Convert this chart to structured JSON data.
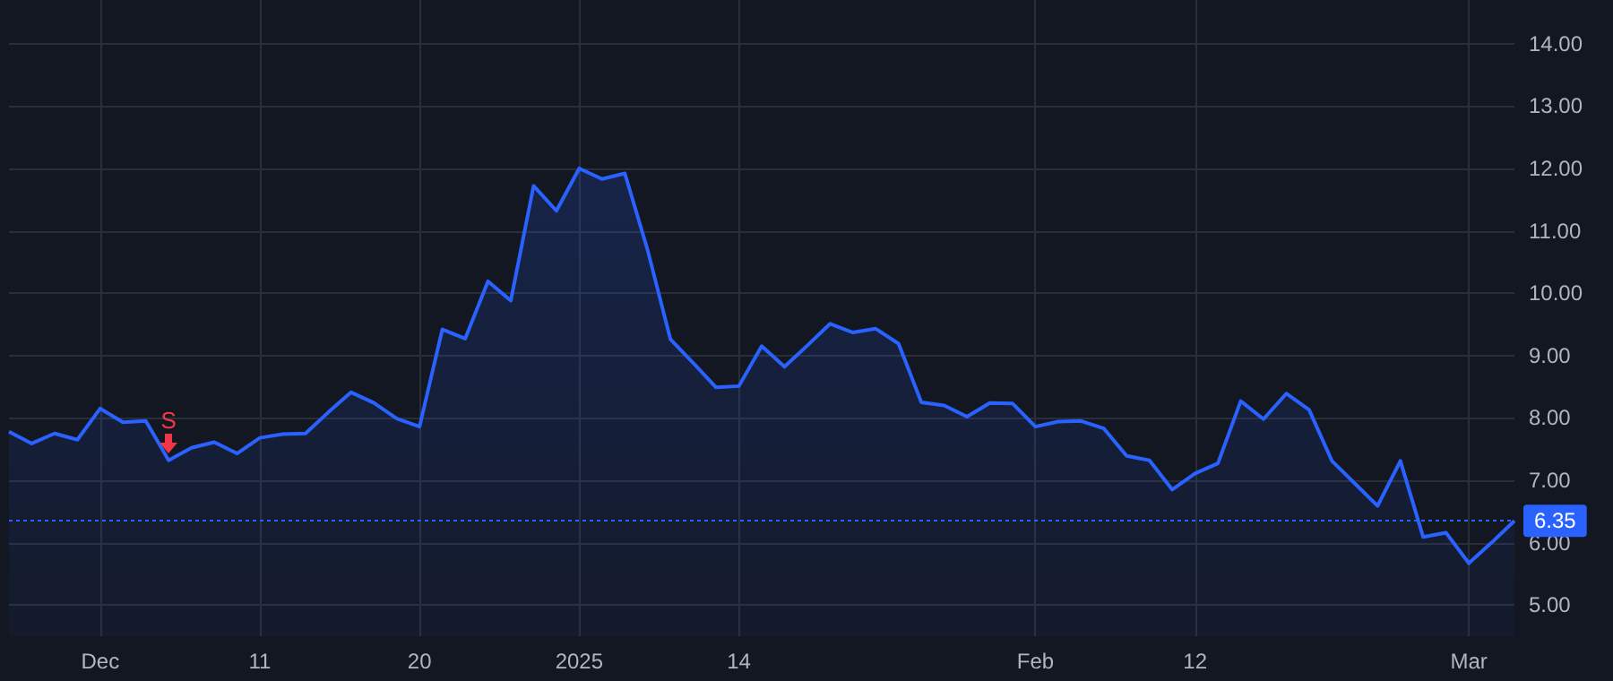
{
  "chart_data": {
    "type": "area",
    "categories": [
      null,
      null,
      null,
      null,
      "Dec",
      null,
      null,
      null,
      null,
      null,
      null,
      "11",
      null,
      null,
      null,
      null,
      null,
      null,
      "20",
      null,
      null,
      null,
      null,
      null,
      null,
      "2025",
      null,
      null,
      null,
      null,
      null,
      null,
      "14",
      null,
      null,
      null,
      null,
      null,
      null,
      null,
      null,
      null,
      null,
      null,
      null,
      "Feb",
      null,
      null,
      null,
      null,
      null,
      null,
      "12",
      null,
      null,
      null,
      null,
      null,
      null,
      null,
      null,
      null,
      null,
      null,
      "Mar",
      null,
      null
    ],
    "series": [
      {
        "color": "#2962ff",
        "values": [
          7.78,
          7.59,
          7.75,
          7.65,
          8.15,
          7.93,
          7.95,
          7.32,
          7.52,
          7.61,
          7.43,
          7.68,
          7.74,
          7.75,
          8.09,
          8.41,
          8.24,
          7.99,
          7.86,
          9.42,
          9.27,
          10.19,
          9.88,
          11.72,
          11.32,
          12.0,
          11.83,
          11.92,
          10.69,
          9.26,
          8.88,
          8.49,
          8.51,
          9.15,
          8.82,
          9.16,
          9.51,
          9.37,
          9.43,
          9.19,
          8.25,
          8.2,
          8.02,
          8.24,
          8.23,
          7.86,
          7.94,
          7.95,
          7.83,
          7.39,
          7.32,
          6.85,
          7.11,
          7.27,
          8.27,
          7.98,
          8.39,
          8.13,
          7.31,
          6.95,
          6.59,
          7.31,
          6.09,
          6.16,
          5.67,
          6.0,
          6.35
        ]
      }
    ],
    "ylim": [
      4.5,
      14.7
    ],
    "yticks": [
      {
        "value": 5,
        "label": "5.00"
      },
      {
        "value": 6,
        "label": "6.00"
      },
      {
        "value": 7,
        "label": "7.00"
      },
      {
        "value": 8,
        "label": "8.00"
      },
      {
        "value": 9,
        "label": "9.00"
      },
      {
        "value": 10,
        "label": "10.00"
      },
      {
        "value": 11,
        "label": "11.00"
      },
      {
        "value": 12,
        "label": "12.00"
      },
      {
        "value": 13,
        "label": "13.00"
      },
      {
        "value": 14,
        "label": "14.00"
      }
    ],
    "grid": true,
    "marker": "none",
    "line_style": "solid",
    "ref_lines": [
      {
        "axis": "y",
        "value": 6.35,
        "label": "6.35",
        "color": "#2962ff",
        "line_style": "dotted"
      }
    ],
    "annotations": [
      "S"
    ]
  }
}
